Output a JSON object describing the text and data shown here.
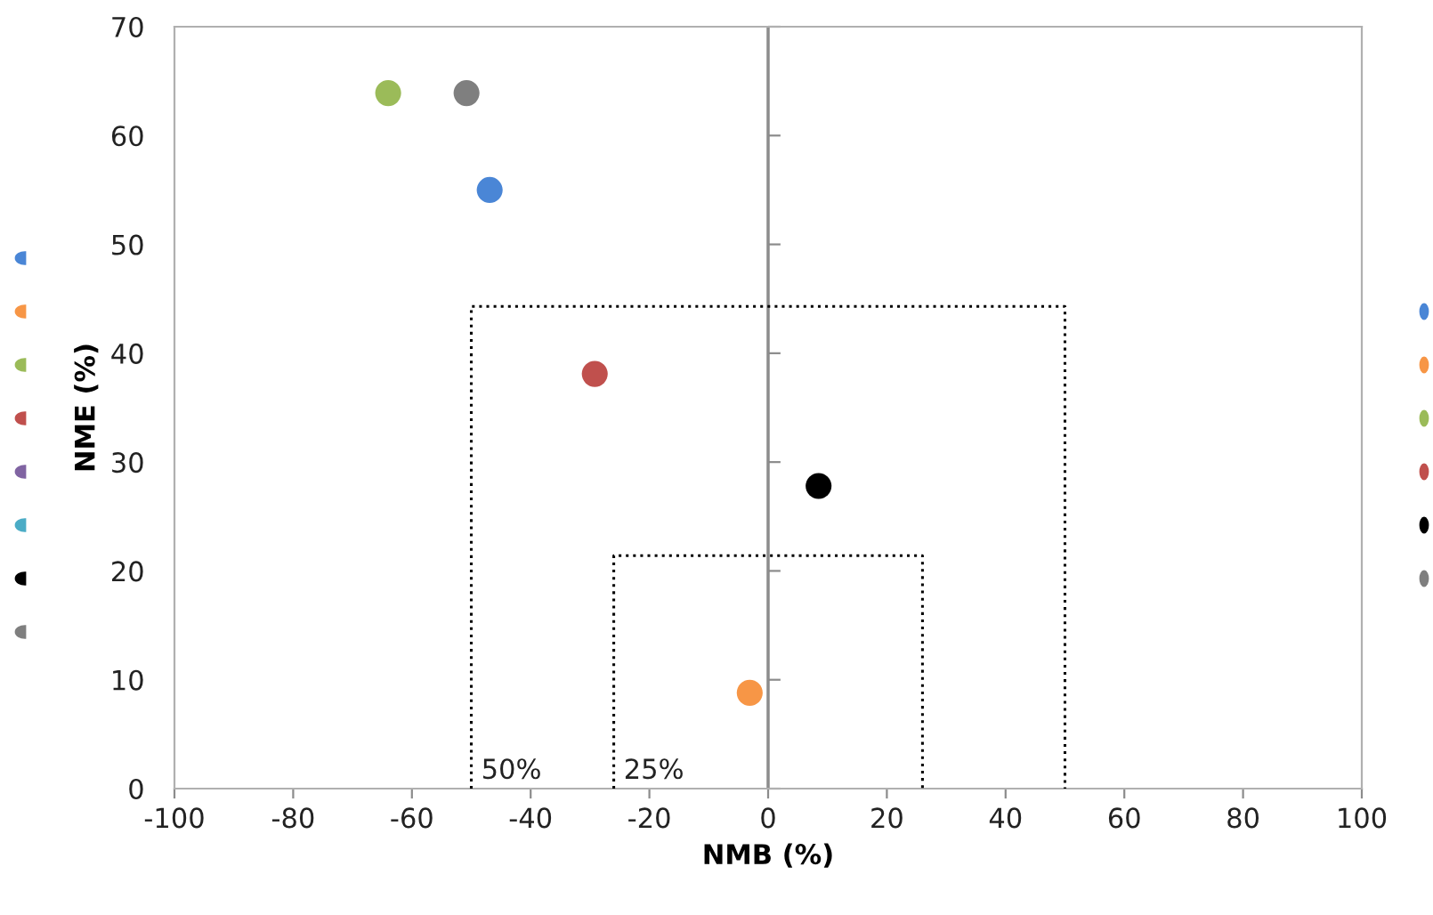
{
  "chart_data": {
    "type": "scatter",
    "xlabel": "NMB (%)",
    "ylabel": "NME (%)",
    "xlim": [
      -100,
      100
    ],
    "xticks": [
      -100,
      -80,
      -60,
      -40,
      -20,
      0,
      20,
      40,
      60,
      80,
      100
    ],
    "ylim": [
      0,
      70
    ],
    "yticks": [
      0,
      10,
      20,
      30,
      40,
      50,
      60,
      70
    ],
    "grid": false,
    "legend": false,
    "marker": "circle",
    "series": [
      {
        "color": "#4a86d6",
        "x": [
          -46.9
        ],
        "values": [
          55.0
        ]
      },
      {
        "color": "#f79646",
        "x": [
          -3.1
        ],
        "values": [
          8.8
        ]
      },
      {
        "color": "#9bbb59",
        "x": [
          -64.0
        ],
        "values": [
          63.9
        ]
      },
      {
        "color": "#c0504d",
        "x": [
          -29.2
        ],
        "values": [
          38.1
        ]
      },
      {
        "color": "#000000",
        "x": [
          8.5
        ],
        "values": [
          27.8
        ]
      },
      {
        "color": "#7f7f7f",
        "x": [
          -50.8
        ],
        "values": [
          63.9
        ]
      },
      {
        "type": "line",
        "color": "#000000",
        "line_style": "dotted",
        "marker": "none",
        "x": [
          -50,
          -50,
          50,
          50
        ],
        "values": [
          0,
          44.3,
          44.3,
          0
        ]
      },
      {
        "type": "line",
        "color": "#000000",
        "line_style": "dotted",
        "marker": "none",
        "x": [
          -26,
          -26,
          26,
          26
        ],
        "values": [
          0,
          21.4,
          21.4,
          0
        ]
      }
    ],
    "ref_lines": [
      {
        "axis": "x",
        "value": 0,
        "color": "#8c8c8c"
      }
    ],
    "annotations": [
      {
        "text": "50%",
        "x": -50,
        "y": 0
      },
      {
        "text": "25%",
        "x": -26,
        "y": 0
      }
    ]
  }
}
